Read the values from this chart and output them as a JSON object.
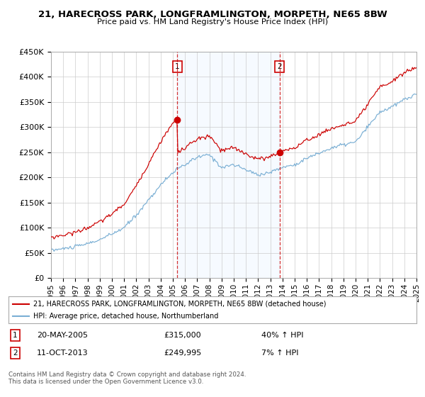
{
  "title": "21, HARECROSS PARK, LONGFRAMLINGTON, MORPETH, NE65 8BW",
  "subtitle": "Price paid vs. HM Land Registry's House Price Index (HPI)",
  "ylim": [
    0,
    450000
  ],
  "yticks": [
    0,
    50000,
    100000,
    150000,
    200000,
    250000,
    300000,
    350000,
    400000,
    450000
  ],
  "ytick_labels": [
    "£0",
    "£50K",
    "£100K",
    "£150K",
    "£200K",
    "£250K",
    "£300K",
    "£350K",
    "£400K",
    "£450K"
  ],
  "x_start_year": 1995,
  "x_end_year": 2025,
  "sale1_date": "20-MAY-2005",
  "sale1_price": 315000,
  "sale1_hpi": "40%",
  "sale2_date": "11-OCT-2013",
  "sale2_price": 249995,
  "sale2_hpi": "7%",
  "sale1_year": 2005.375,
  "sale2_year": 2013.75,
  "red_line_color": "#cc0000",
  "blue_line_color": "#7aafd4",
  "shade_color": "#ddeeff",
  "dashed_marker_color": "#cc0000",
  "marker_dot_color": "#cc0000",
  "legend_label1": "21, HARECROSS PARK, LONGFRAMLINGTON, MORPETH, NE65 8BW (detached house)",
  "legend_label2": "HPI: Average price, detached house, Northumberland",
  "footer": "Contains HM Land Registry data © Crown copyright and database right 2024.\nThis data is licensed under the Open Government Licence v3.0.",
  "background_color": "#ffffff",
  "grid_color": "#cccccc",
  "hpi_keypoints_years": [
    1995,
    1996,
    1997,
    1998,
    1999,
    2000,
    2001,
    2002,
    2003,
    2004,
    2005,
    2006,
    2007,
    2008,
    2009,
    2010,
    2011,
    2012,
    2013,
    2014,
    2015,
    2016,
    2017,
    2018,
    2019,
    2020,
    2021,
    2022,
    2023,
    2024,
    2025
  ],
  "hpi_keypoints_vals": [
    55000,
    58000,
    62000,
    68000,
    76000,
    87000,
    100000,
    125000,
    155000,
    185000,
    210000,
    225000,
    240000,
    245000,
    220000,
    225000,
    215000,
    205000,
    210000,
    220000,
    225000,
    238000,
    248000,
    258000,
    265000,
    270000,
    300000,
    330000,
    340000,
    355000,
    365000
  ]
}
